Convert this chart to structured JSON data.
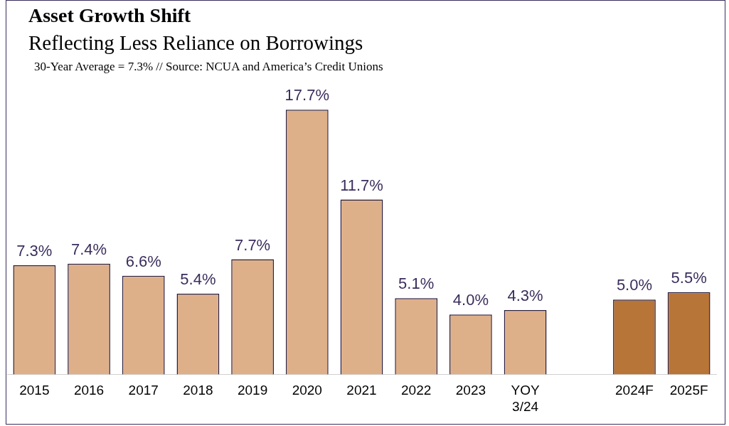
{
  "chart_data": {
    "type": "bar",
    "title": "Asset Growth Shift",
    "subtitle": "Reflecting Less Reliance on Borrowings",
    "annotations": [
      "30-Year Average = 7.3% // Source: NCUA and America’s Credit Unions"
    ],
    "categories": [
      "2015",
      "2016",
      "2017",
      "2018",
      "2019",
      "2020",
      "2021",
      "2022",
      "2023",
      "YOY\n3/24",
      null,
      "2024F",
      "2025F"
    ],
    "values": [
      7.3,
      7.4,
      6.6,
      5.4,
      7.7,
      17.7,
      11.7,
      5.1,
      4.0,
      4.3,
      null,
      5.0,
      5.5
    ],
    "colors": [
      "#deb08a",
      "#deb08a",
      "#deb08a",
      "#deb08a",
      "#deb08a",
      "#deb08a",
      "#deb08a",
      "#deb08a",
      "#deb08a",
      "#deb08a",
      "#deb08a",
      "#b87538",
      "#b87538"
    ],
    "value_labels": [
      "7.3%",
      "7.4%",
      "6.6%",
      "5.4%",
      "7.7%",
      "17.7%",
      "11.7%",
      "5.1%",
      "4.0%",
      "4.3%",
      null,
      "5.0%",
      "5.5%"
    ],
    "grid": false,
    "legend": false
  }
}
